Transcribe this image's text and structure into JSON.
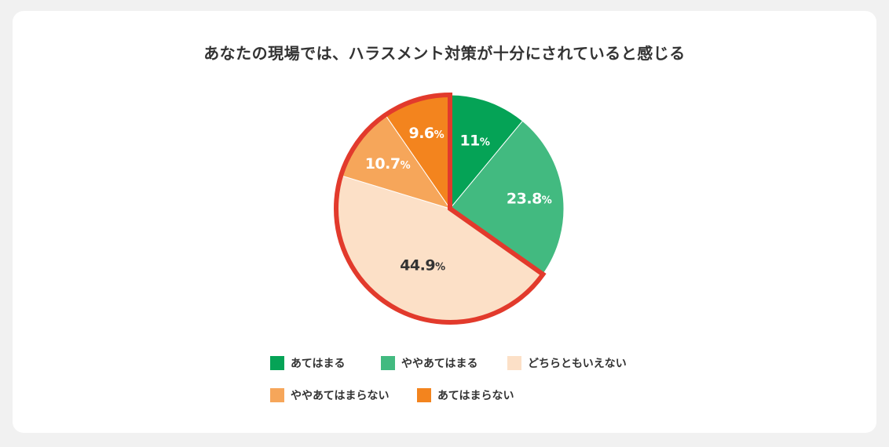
{
  "chart_data": {
    "type": "pie",
    "title": "あなたの現場では、ハラスメント対策が十分にされていると感じる",
    "categories": [
      "あてはまる",
      "ややあてはまる",
      "どちらともいえない",
      "ややあてはまらない",
      "あてはまらない"
    ],
    "values": [
      11,
      23.8,
      44.9,
      10.7,
      9.6
    ],
    "value_labels": [
      "11",
      "23.8",
      "44.9",
      "10.7",
      "9.6"
    ],
    "unit": "%",
    "colors": [
      "#05a356",
      "#42ba80",
      "#fce0c7",
      "#f6a65a",
      "#f3841e"
    ],
    "label_colors": [
      "#ffffff",
      "#ffffff",
      "#333333",
      "#ffffff",
      "#ffffff"
    ],
    "highlight_color": "#e23a2c",
    "highlighted_categories": [
      "どちらともいえない",
      "ややあてはまらない",
      "あてはまらない"
    ],
    "legend_position": "bottom"
  }
}
